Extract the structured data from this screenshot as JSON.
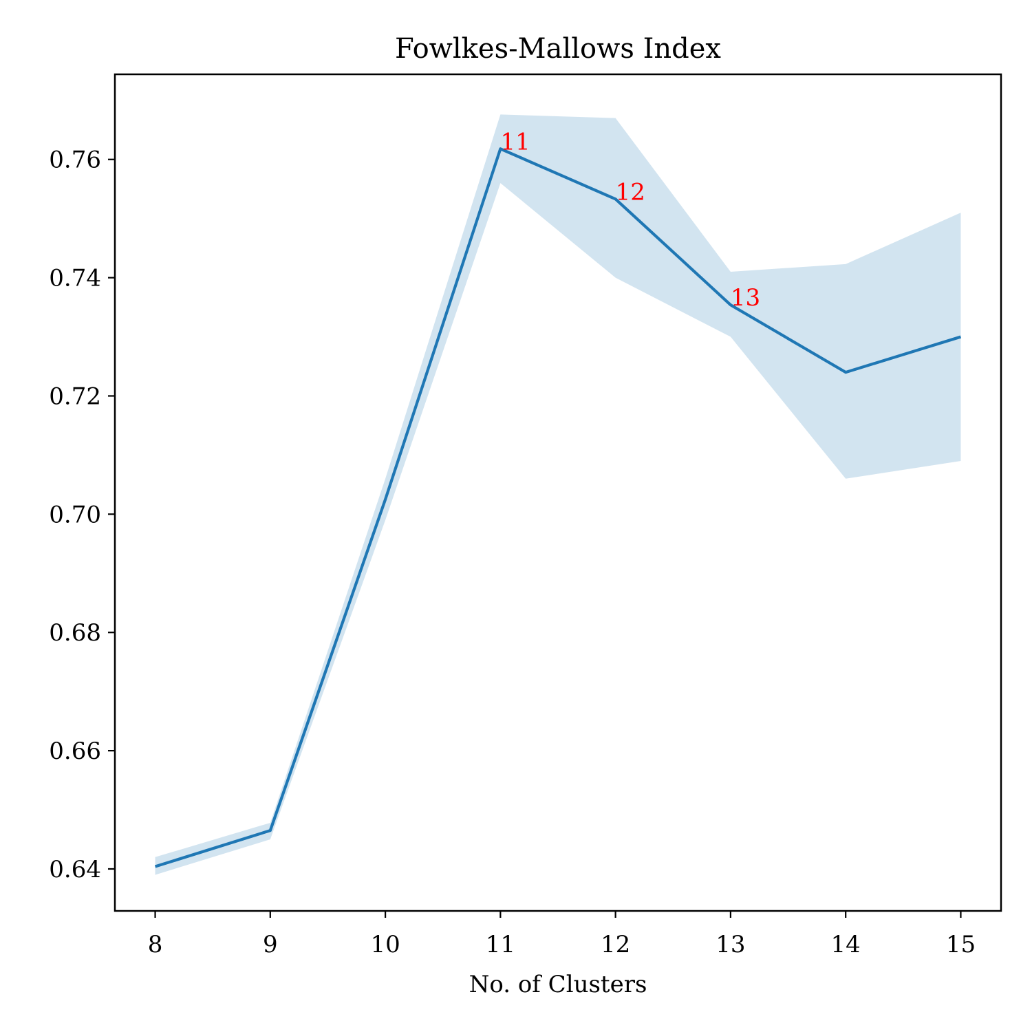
{
  "chart_data": {
    "type": "line",
    "title": "Fowlkes-Mallows Index",
    "xlabel": "No. of Clusters",
    "ylabel": "",
    "xlim": [
      7.65,
      15.35
    ],
    "ylim": [
      0.6329,
      0.7744
    ],
    "x_ticks": [
      8,
      9,
      10,
      11,
      12,
      13,
      14,
      15
    ],
    "y_ticks": [
      0.64,
      0.66,
      0.68,
      0.7,
      0.72,
      0.74,
      0.76
    ],
    "y_tick_labels": [
      "0.64",
      "0.66",
      "0.68",
      "0.70",
      "0.72",
      "0.74",
      "0.76"
    ],
    "x_tick_labels": [
      "8",
      "9",
      "10",
      "11",
      "12",
      "13",
      "14",
      "15"
    ],
    "x": [
      8,
      9,
      10,
      11,
      12,
      13,
      14,
      15
    ],
    "series": [
      {
        "values": [
          0.6404,
          0.6465,
          0.7025,
          0.7618,
          0.7533,
          0.7354,
          0.724,
          0.73
        ],
        "lower": [
          0.639,
          0.645,
          0.699,
          0.756,
          0.74,
          0.73,
          0.706,
          0.709
        ],
        "upper": [
          0.642,
          0.6478,
          0.706,
          0.7676,
          0.767,
          0.741,
          0.7423,
          0.751
        ],
        "color": "#1f77b4",
        "band_color": "#1f77b4"
      }
    ],
    "annotations": [
      {
        "text": "11",
        "x": 11,
        "y": 0.7618
      },
      {
        "text": "12",
        "x": 12,
        "y": 0.7533
      },
      {
        "text": "13",
        "x": 13,
        "y": 0.7354
      }
    ],
    "annotation_color": "#ff0000",
    "grid": false,
    "legend": "none"
  }
}
